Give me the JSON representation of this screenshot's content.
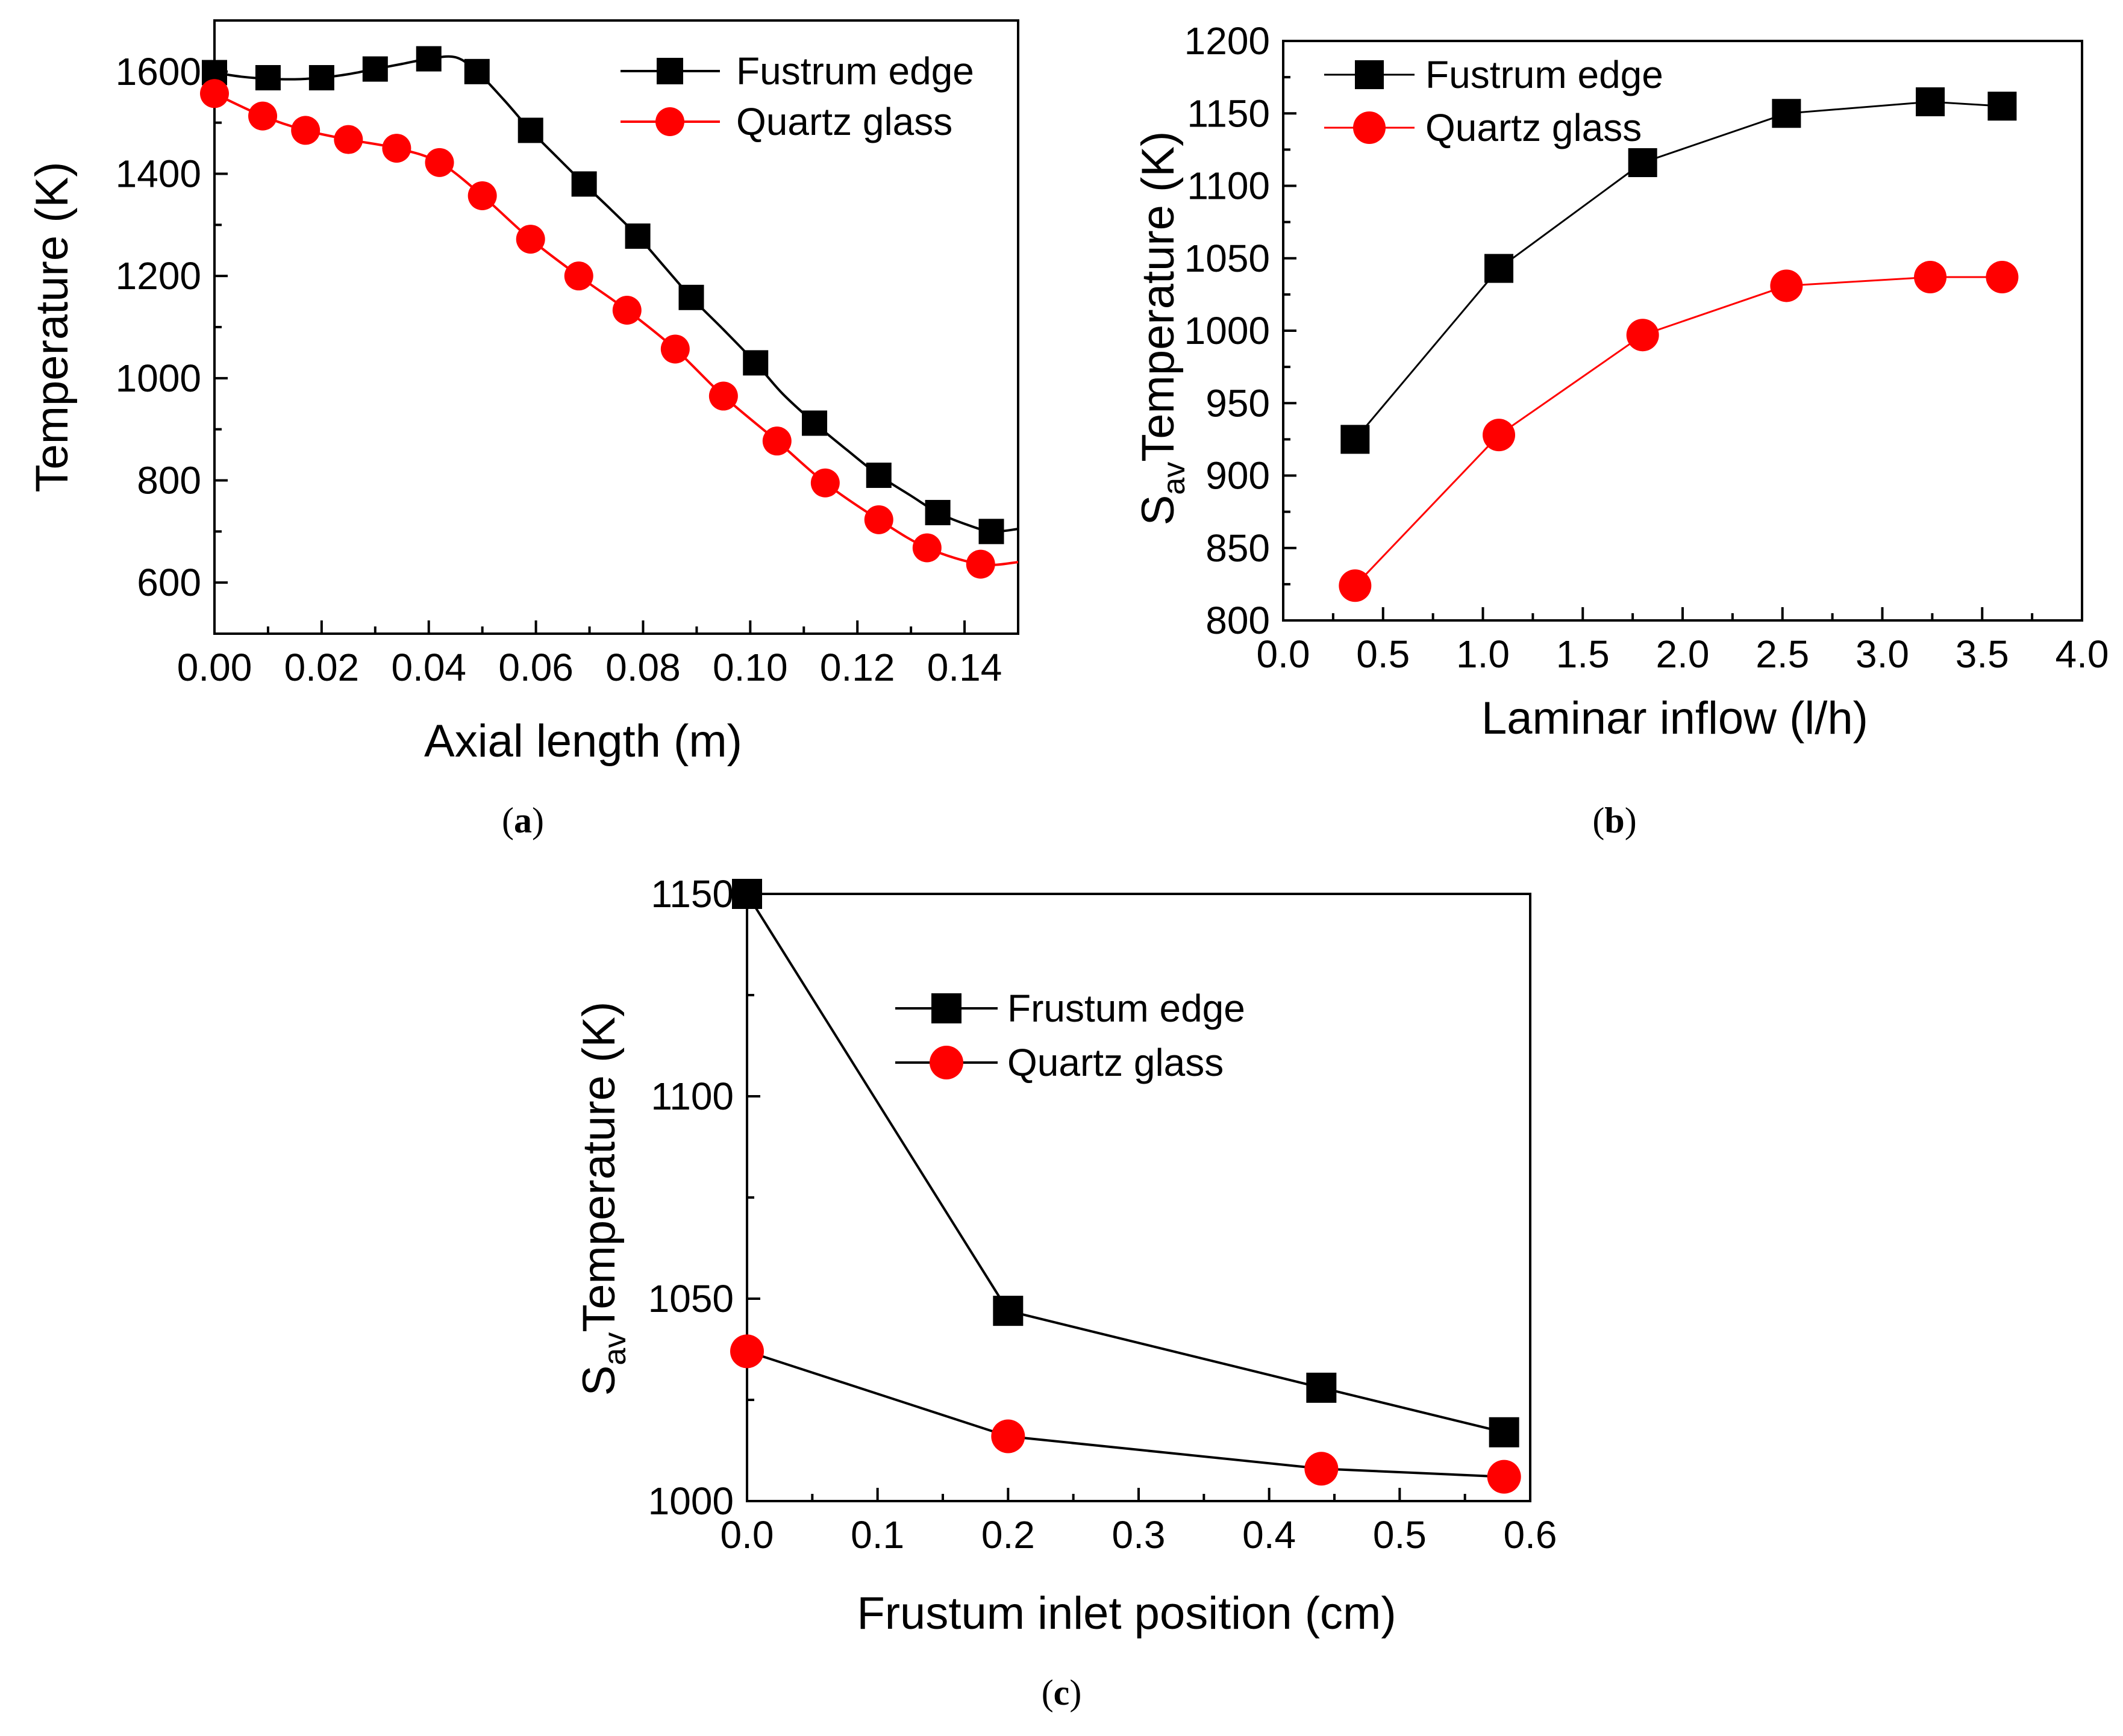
{
  "chart_data": [
    {
      "id": "a",
      "type": "line",
      "caption_letter": "a",
      "xlabel": "Axial length (m)",
      "ylabel": "Temperature (K)",
      "xlim": [
        0,
        0.15
      ],
      "ylim": [
        500,
        1700
      ],
      "xticks": [
        0.0,
        0.02,
        0.04,
        0.06,
        0.08,
        0.1,
        0.12,
        0.14
      ],
      "xtick_labels": [
        "0.00",
        "0.02",
        "0.04",
        "0.06",
        "0.08",
        "0.10",
        "0.12",
        "0.14"
      ],
      "yticks": [
        600,
        800,
        1000,
        1200,
        1400,
        1600
      ],
      "ytick_labels": [
        "600",
        "800",
        "1000",
        "1200",
        "1400",
        "1600"
      ],
      "legend_position": "top-right",
      "series": [
        {
          "name": "Fustrum edge",
          "color": "#000000",
          "marker": "square",
          "x": [
            0.0,
            0.01,
            0.02,
            0.03,
            0.04,
            0.049,
            0.059,
            0.069,
            0.079,
            0.089,
            0.101,
            0.112,
            0.124,
            0.135,
            0.145
          ],
          "values": [
            1598,
            1588,
            1588,
            1605,
            1625,
            1600,
            1485,
            1380,
            1278,
            1158,
            1030,
            912,
            810,
            737,
            700
          ],
          "curve_x": [
            0.0,
            0.005,
            0.01,
            0.015,
            0.02,
            0.025,
            0.03,
            0.035,
            0.04,
            0.045,
            0.049,
            0.054,
            0.059,
            0.064,
            0.069,
            0.074,
            0.079,
            0.084,
            0.089,
            0.095,
            0.101,
            0.106,
            0.112,
            0.118,
            0.124,
            0.13,
            0.135,
            0.14,
            0.145,
            0.15
          ],
          "curve_y": [
            1598,
            1590,
            1586,
            1585,
            1588,
            1595,
            1605,
            1615,
            1625,
            1628,
            1600,
            1545,
            1485,
            1432,
            1380,
            1330,
            1278,
            1218,
            1158,
            1095,
            1030,
            970,
            912,
            860,
            810,
            770,
            737,
            715,
            700,
            705
          ]
        },
        {
          "name": "Quartz glass",
          "color": "#ff0000",
          "marker": "circle",
          "x": [
            0.0,
            0.009,
            0.017,
            0.025,
            0.034,
            0.042,
            0.05,
            0.059,
            0.068,
            0.077,
            0.086,
            0.095,
            0.105,
            0.114,
            0.124,
            0.133,
            0.143
          ],
          "values": [
            1557,
            1513,
            1485,
            1467,
            1450,
            1422,
            1357,
            1272,
            1200,
            1133,
            1057,
            965,
            877,
            795,
            723,
            668,
            636
          ],
          "curve_x": [
            0.0,
            0.009,
            0.017,
            0.025,
            0.034,
            0.042,
            0.05,
            0.059,
            0.068,
            0.077,
            0.086,
            0.095,
            0.105,
            0.114,
            0.124,
            0.133,
            0.143,
            0.15
          ],
          "curve_y": [
            1557,
            1513,
            1485,
            1467,
            1450,
            1422,
            1357,
            1272,
            1200,
            1133,
            1057,
            965,
            877,
            795,
            723,
            668,
            636,
            640
          ]
        }
      ]
    },
    {
      "id": "b",
      "type": "line",
      "caption_letter": "b",
      "xlabel": "Laminar inflow (l/h)",
      "ylabel_main": "S",
      "ylabel_sub": "av",
      "ylabel_rest": "Temperature (K)",
      "xlim": [
        0,
        4.0
      ],
      "ylim": [
        800,
        1200
      ],
      "xticks": [
        0.0,
        0.5,
        1.0,
        1.5,
        2.0,
        2.5,
        3.0,
        3.5,
        4.0
      ],
      "xtick_labels": [
        "0.0",
        "0.5",
        "1.0",
        "1.5",
        "2.0",
        "2.5",
        "3.0",
        "3.5",
        "4.0"
      ],
      "yticks": [
        800,
        850,
        900,
        950,
        1000,
        1050,
        1100,
        1150,
        1200
      ],
      "ytick_labels": [
        "800",
        "850",
        "900",
        "950",
        "1000",
        "1050",
        "1100",
        "1150",
        "1200"
      ],
      "legend_position": "top-left",
      "series": [
        {
          "name": "Fustrum edge",
          "color": "#000000",
          "marker": "square",
          "x": [
            0.36,
            1.08,
            1.8,
            2.52,
            3.24,
            3.6
          ],
          "values": [
            925,
            1043,
            1116,
            1150,
            1158,
            1155
          ]
        },
        {
          "name": "Quartz glass",
          "color": "#ff0000",
          "marker": "circle",
          "x": [
            0.36,
            1.08,
            1.8,
            2.52,
            3.24,
            3.6
          ],
          "values": [
            824,
            928,
            997,
            1031,
            1037,
            1037
          ]
        }
      ]
    },
    {
      "id": "c",
      "type": "line",
      "caption_letter": "c",
      "xlabel": "Frustum inlet position (cm)",
      "ylabel_main": "S",
      "ylabel_sub": "av",
      "ylabel_rest": "Temperature (K)",
      "xlim": [
        0,
        0.6
      ],
      "ylim": [
        1000,
        1150
      ],
      "xticks": [
        0.0,
        0.1,
        0.2,
        0.3,
        0.4,
        0.5,
        0.6
      ],
      "xtick_labels": [
        "0.0",
        "0.1",
        "0.2",
        "0.3",
        "0.4",
        "0.5",
        "0.6"
      ],
      "yticks": [
        1000,
        1050,
        1100,
        1150
      ],
      "ytick_labels": [
        "1000",
        "1050",
        "1100",
        "1150"
      ],
      "legend_position": "top-center",
      "series": [
        {
          "name": "Frustum edge",
          "color": "#000000",
          "marker": "square",
          "x": [
            0.0,
            0.2,
            0.44,
            0.58
          ],
          "values": [
            1150,
            1047,
            1028,
            1017
          ]
        },
        {
          "name": "Quartz glass",
          "color": "#ff0000",
          "marker": "circle",
          "x": [
            0.0,
            0.2,
            0.44,
            0.58
          ],
          "values": [
            1037,
            1016,
            1008,
            1006
          ]
        }
      ]
    }
  ]
}
